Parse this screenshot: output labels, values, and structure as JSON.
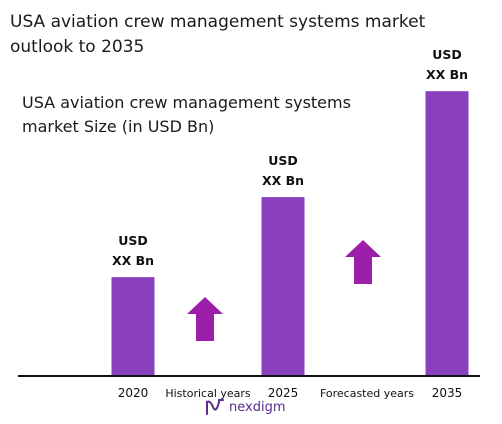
{
  "page_title": "USA aviation crew management systems market outlook to 2035",
  "brand": {
    "name": "nexdigm",
    "color": "#5a2d91"
  },
  "colors": {
    "bar": "#8a3fbf",
    "arrow": "#9b1fa8",
    "axis": "#111111"
  },
  "chart_data": {
    "type": "bar",
    "title": "USA aviation crew management systems market Size (in USD Bn)",
    "categories": [
      "2020",
      "2025",
      "2035"
    ],
    "values": [
      0.42,
      0.76,
      1.21
    ],
    "value_labels": [
      "USD\nXX Bn",
      "USD\nXX Bn",
      "USD\nXX Bn"
    ],
    "annotations": [
      "Historical years",
      "Forecasted years"
    ],
    "ylim": [
      0,
      1.3
    ],
    "grid": false,
    "legend": "none"
  }
}
